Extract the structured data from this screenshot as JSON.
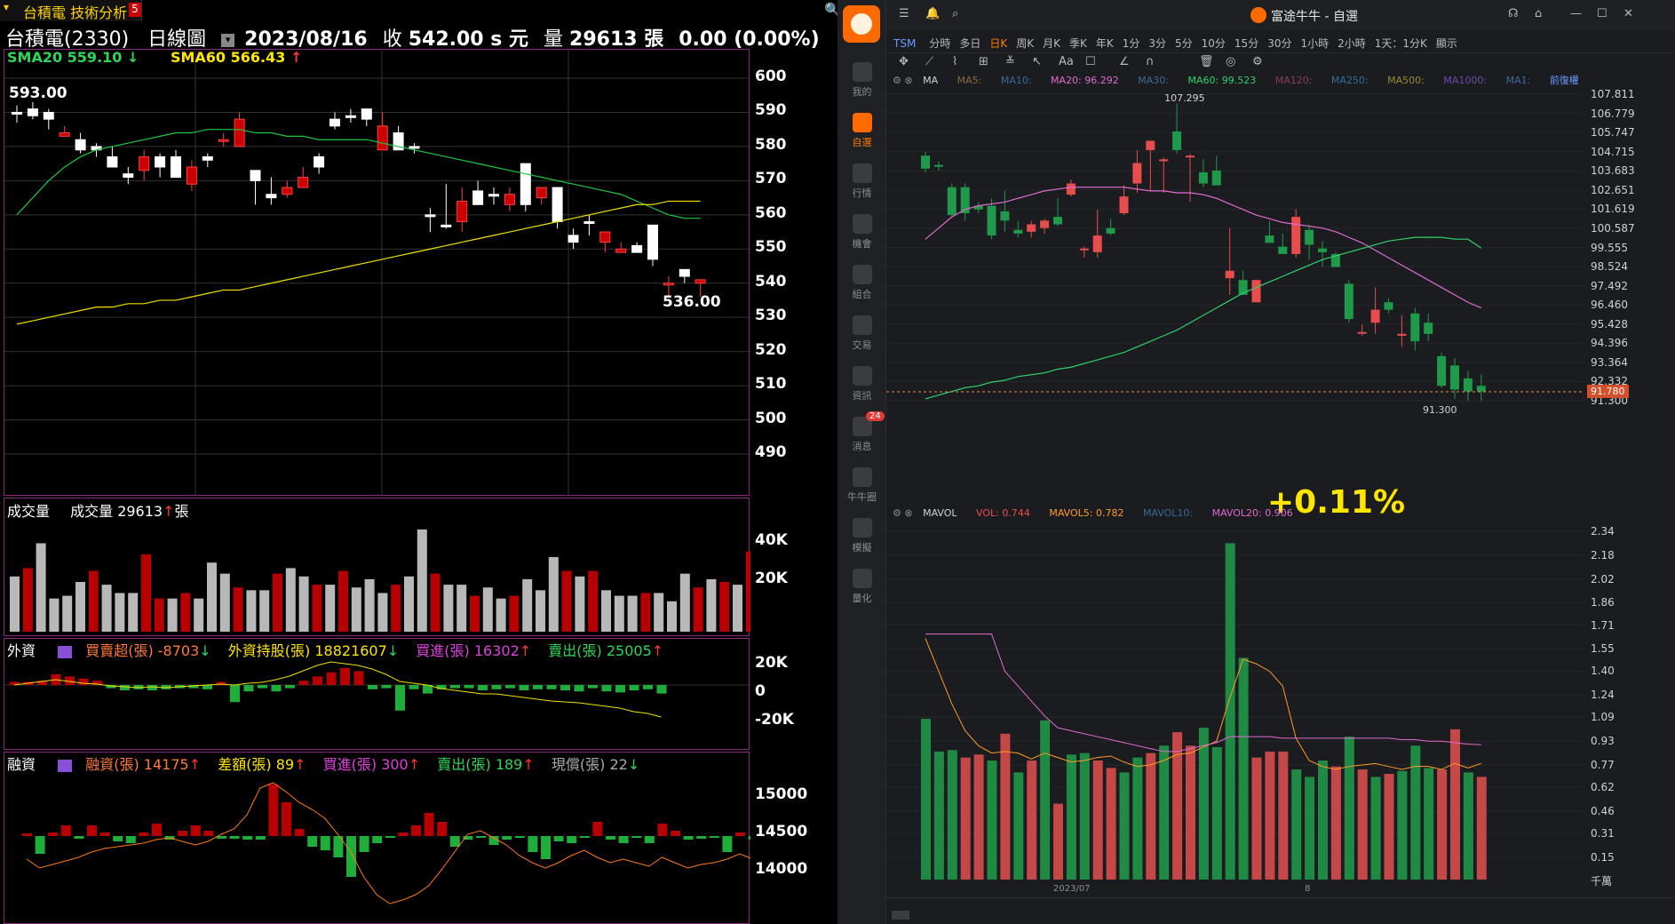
{
  "left": {
    "tab_title": "台積電 技術分析",
    "tab_badge": "5",
    "header": {
      "name": "台積電(2330)",
      "chart_type": "日線圖",
      "date": "2023/08/16",
      "close_label": "收",
      "close_value": "542.00 s 元",
      "volume_label": "量",
      "volume_value": "29613 張",
      "change": "0.00 (0.00%)"
    },
    "ma_legend": {
      "sma20": "SMA20 559.10",
      "sma60": "SMA60 566.43"
    },
    "price_high_label": "593.00",
    "price_low_label": "536.00",
    "price_axis": [
      "600",
      "590",
      "580",
      "570",
      "560",
      "550",
      "540",
      "530",
      "520",
      "510",
      "500",
      "490"
    ],
    "volume_panel": {
      "title": "成交量",
      "label": "成交量 29613",
      "unit": "張",
      "axis": [
        "40K",
        "20K"
      ]
    },
    "foreign_panel": {
      "title": "外資",
      "net": "買賣超(張) -8703",
      "holding": "外資持股(張) 18821607",
      "buy": "買進(張) 16302",
      "sell": "賣出(張) 25005",
      "axis": [
        "20K",
        "0",
        "-20K"
      ]
    },
    "margin_panel": {
      "title": "融資",
      "margin": "融資(張) 14175",
      "diff": "差額(張) 89",
      "buy": "買進(張) 300",
      "sell": "賣出(張) 189",
      "repay": "現償(張) 22",
      "axis": [
        "15000",
        "14500",
        "14000"
      ]
    }
  },
  "right": {
    "window_title": "富途牛牛 - 自選",
    "sidebar": [
      "我的",
      "自選",
      "行情",
      "機會",
      "組合",
      "交易",
      "資訊",
      "消息",
      "牛牛圈",
      "模擬",
      "量化"
    ],
    "sidebar_badge": "24",
    "symbol": "TSM",
    "periods": [
      "分時",
      "多日",
      "日K",
      "周K",
      "月K",
      "季K",
      "年K",
      "1分",
      "3分",
      "5分",
      "10分",
      "15分",
      "30分",
      "1小時",
      "2小時",
      "1天：1分K",
      "顯示"
    ],
    "active_period": "日K",
    "ma_legend": {
      "label": "MA",
      "ma5": "MA5:",
      "ma10": "MA10:",
      "ma20": "MA20: 96.292",
      "ma30": "MA30:",
      "ma60": "MA60: 99.523",
      "ma120": "MA120:",
      "ma250": "MA250:",
      "ma500": "MA500:",
      "ma1000": "MA1000:",
      "ma1": "MA1:",
      "adjust": "前復權"
    },
    "price_axis": [
      "107.811",
      "106.779",
      "105.747",
      "104.715",
      "103.683",
      "102.651",
      "101.619",
      "100.587",
      "99.555",
      "98.524",
      "97.492",
      "96.460",
      "95.428",
      "94.396",
      "93.364",
      "92.332",
      "91.300"
    ],
    "current_price": "91.780",
    "high_label": "107.295",
    "low_label": "91.300",
    "change_pct": "+0.11%",
    "vol_legend": {
      "label": "MAVOL",
      "vol": "VOL: 0.744",
      "mavol5": "MAVOL5: 0.782",
      "mavol10": "MAVOL10:",
      "mavol20": "MAVOL20: 0.906"
    },
    "vol_axis": [
      "2.34",
      "2.18",
      "2.02",
      "1.86",
      "1.71",
      "1.55",
      "1.40",
      "1.24",
      "1.09",
      "0.93",
      "0.77",
      "0.62",
      "0.46",
      "0.31",
      "0.15",
      "千萬"
    ],
    "date_labels": [
      "2023/07",
      "8"
    ],
    "colors": {
      "up": "#e84d4d",
      "down": "#1f9a4a",
      "accent": "#ff7a00"
    }
  }
}
